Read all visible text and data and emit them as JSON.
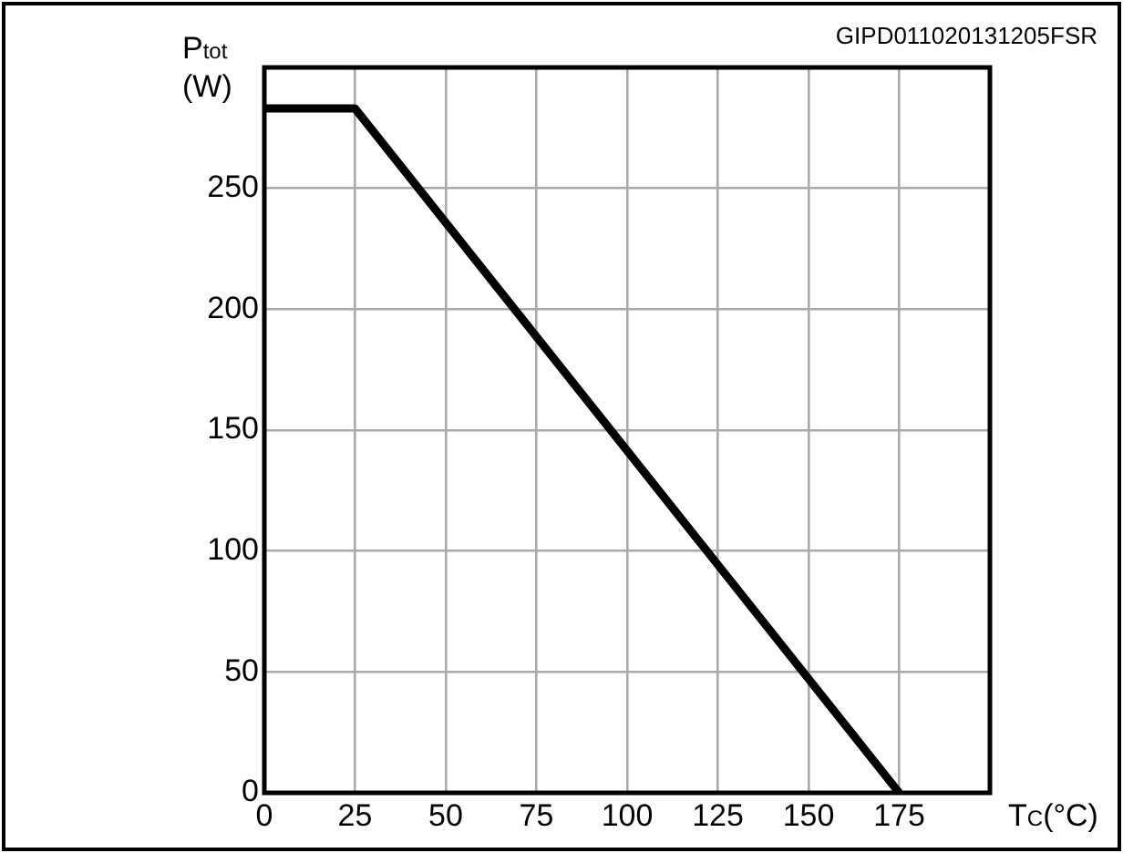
{
  "chart_data": {
    "type": "line",
    "xlabel": "T$_{C}$(°C)",
    "ylabel": "P$_{tot}$ (W)",
    "annotations": [
      "GIPD011020131205FSR"
    ],
    "x": [
      0,
      25,
      175
    ],
    "series": [
      {
        "color": "#000000",
        "values": [
          283,
          283,
          0
        ]
      }
    ],
    "xlim": [
      0,
      200
    ],
    "xticks": [
      0,
      25,
      50,
      75,
      100,
      125,
      150,
      175,
      {
        "value": 200,
        "label": null
      }
    ],
    "ylim": [
      0,
      300
    ],
    "yticks": [
      0,
      50,
      100,
      150,
      200,
      250,
      {
        "value": 300,
        "label": null
      }
    ],
    "grid": true,
    "legend": false,
    "marker": "none",
    "line_style": "solid"
  }
}
